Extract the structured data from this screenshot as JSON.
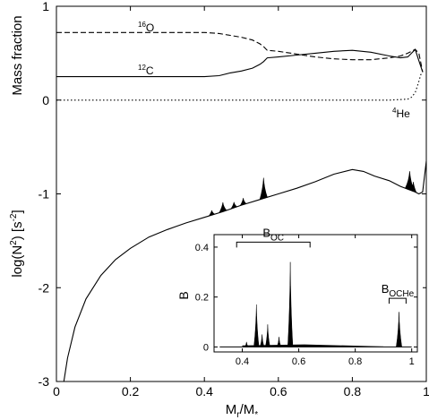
{
  "chart_data": [
    {
      "type": "line",
      "panel": "main",
      "xlabel_main": "M",
      "xlabel_sub": "r",
      "xlabel_tail": "/M",
      "xlabel_star": "*",
      "ylabel_top": "Mass fraction",
      "ylabel_bottom_prefix": "log(N",
      "ylabel_bottom_sup": "2",
      "ylabel_bottom_mid": ") [s",
      "ylabel_bottom_sup2": "-2",
      "ylabel_bottom_suffix": "]",
      "xlim": [
        0,
        1.0
      ],
      "ylim": [
        -3,
        1
      ],
      "x_ticks": [
        "0",
        "0.2",
        "0.4",
        "0.6",
        "0.8",
        "1"
      ],
      "x_tick_values": [
        0,
        0.2,
        0.4,
        0.6,
        0.8,
        1.0
      ],
      "y_ticks": [
        "-3",
        "-2",
        "-1",
        "0",
        "1"
      ],
      "y_tick_values": [
        -3,
        -2,
        -1,
        0,
        1
      ],
      "annotations": {
        "O16": {
          "sup": "16",
          "base": "O"
        },
        "C12": {
          "sup": "12",
          "base": "C"
        },
        "He4": {
          "sup": "4",
          "base": "He"
        }
      },
      "series": [
        {
          "key": "oxygen",
          "style": "dashed",
          "x": [
            0.0,
            0.1,
            0.2,
            0.3,
            0.4,
            0.44,
            0.47,
            0.5,
            0.53,
            0.55,
            0.56,
            0.57,
            0.6,
            0.65,
            0.7,
            0.75,
            0.8,
            0.85,
            0.9,
            0.93,
            0.95,
            0.96,
            0.97,
            0.98,
            0.99
          ],
          "y": [
            0.72,
            0.72,
            0.72,
            0.72,
            0.72,
            0.71,
            0.69,
            0.67,
            0.64,
            0.6,
            0.57,
            0.53,
            0.52,
            0.49,
            0.46,
            0.44,
            0.43,
            0.43,
            0.45,
            0.47,
            0.5,
            0.52,
            0.54,
            0.5,
            0.3
          ]
        },
        {
          "key": "carbon",
          "style": "solid",
          "x": [
            0.0,
            0.1,
            0.2,
            0.3,
            0.4,
            0.44,
            0.47,
            0.5,
            0.53,
            0.55,
            0.56,
            0.57,
            0.6,
            0.65,
            0.7,
            0.75,
            0.8,
            0.85,
            0.9,
            0.93,
            0.95,
            0.96,
            0.97,
            0.98,
            0.99
          ],
          "y": [
            0.25,
            0.25,
            0.25,
            0.25,
            0.25,
            0.26,
            0.29,
            0.31,
            0.34,
            0.38,
            0.41,
            0.45,
            0.46,
            0.48,
            0.5,
            0.52,
            0.53,
            0.51,
            0.47,
            0.45,
            0.46,
            0.5,
            0.54,
            0.42,
            0.3
          ]
        },
        {
          "key": "helium",
          "style": "dotted",
          "x": [
            0.0,
            0.5,
            0.9,
            0.95,
            0.96,
            0.97,
            0.975,
            0.98,
            0.985,
            0.99
          ],
          "y": [
            0.0,
            0.0,
            0.0,
            0.01,
            0.03,
            0.08,
            0.14,
            0.2,
            0.27,
            0.3
          ]
        },
        {
          "key": "logN2",
          "style": "solid",
          "x": [
            0.02,
            0.03,
            0.05,
            0.08,
            0.12,
            0.16,
            0.2,
            0.25,
            0.3,
            0.35,
            0.4,
            0.45,
            0.5,
            0.55,
            0.6,
            0.65,
            0.7,
            0.75,
            0.8,
            0.83,
            0.86,
            0.9,
            0.93,
            0.95,
            0.97,
            0.98,
            0.99,
            1.0
          ],
          "y": [
            -3.0,
            -2.75,
            -2.42,
            -2.12,
            -1.87,
            -1.7,
            -1.58,
            -1.46,
            -1.38,
            -1.31,
            -1.25,
            -1.19,
            -1.12,
            -1.06,
            -1.0,
            -0.94,
            -0.87,
            -0.79,
            -0.74,
            -0.76,
            -0.81,
            -0.86,
            -0.92,
            -0.95,
            -0.98,
            -1.0,
            -0.98,
            -0.65
          ]
        }
      ],
      "peaks": {
        "x": [
          0.42,
          0.45,
          0.48,
          0.505,
          0.56,
          0.955,
          0.965
        ],
        "height": [
          0.05,
          0.1,
          0.06,
          0.07,
          0.22,
          0.2,
          0.1
        ],
        "width": [
          0.008,
          0.01,
          0.008,
          0.008,
          0.01,
          0.012,
          0.008
        ]
      }
    },
    {
      "type": "area",
      "panel": "inset",
      "ylabel": "B",
      "xlim": [
        0.3,
        1.02
      ],
      "ylim": [
        -0.02,
        0.45
      ],
      "x_ticks": [
        "0.4",
        "0.6",
        "0.8",
        "1"
      ],
      "x_tick_values": [
        0.4,
        0.6,
        0.8,
        1.0
      ],
      "y_ticks": [
        "0",
        "0.2",
        "0.4"
      ],
      "y_tick_values": [
        0,
        0.2,
        0.4
      ],
      "bracket_oc": {
        "label_base": "B",
        "label_sub": "OC",
        "x0": 0.38,
        "x1": 0.64,
        "y": 0.42
      },
      "bracket_oche": {
        "label_base": "B",
        "label_sub": "OCHe",
        "x0": 0.92,
        "x1": 0.98,
        "y": 0.195
      },
      "peaks": {
        "x": [
          0.415,
          0.45,
          0.47,
          0.49,
          0.53,
          0.57,
          0.955
        ],
        "height": [
          0.02,
          0.17,
          0.05,
          0.09,
          0.04,
          0.34,
          0.14
        ],
        "width": [
          0.006,
          0.009,
          0.007,
          0.008,
          0.007,
          0.009,
          0.01
        ]
      }
    }
  ]
}
